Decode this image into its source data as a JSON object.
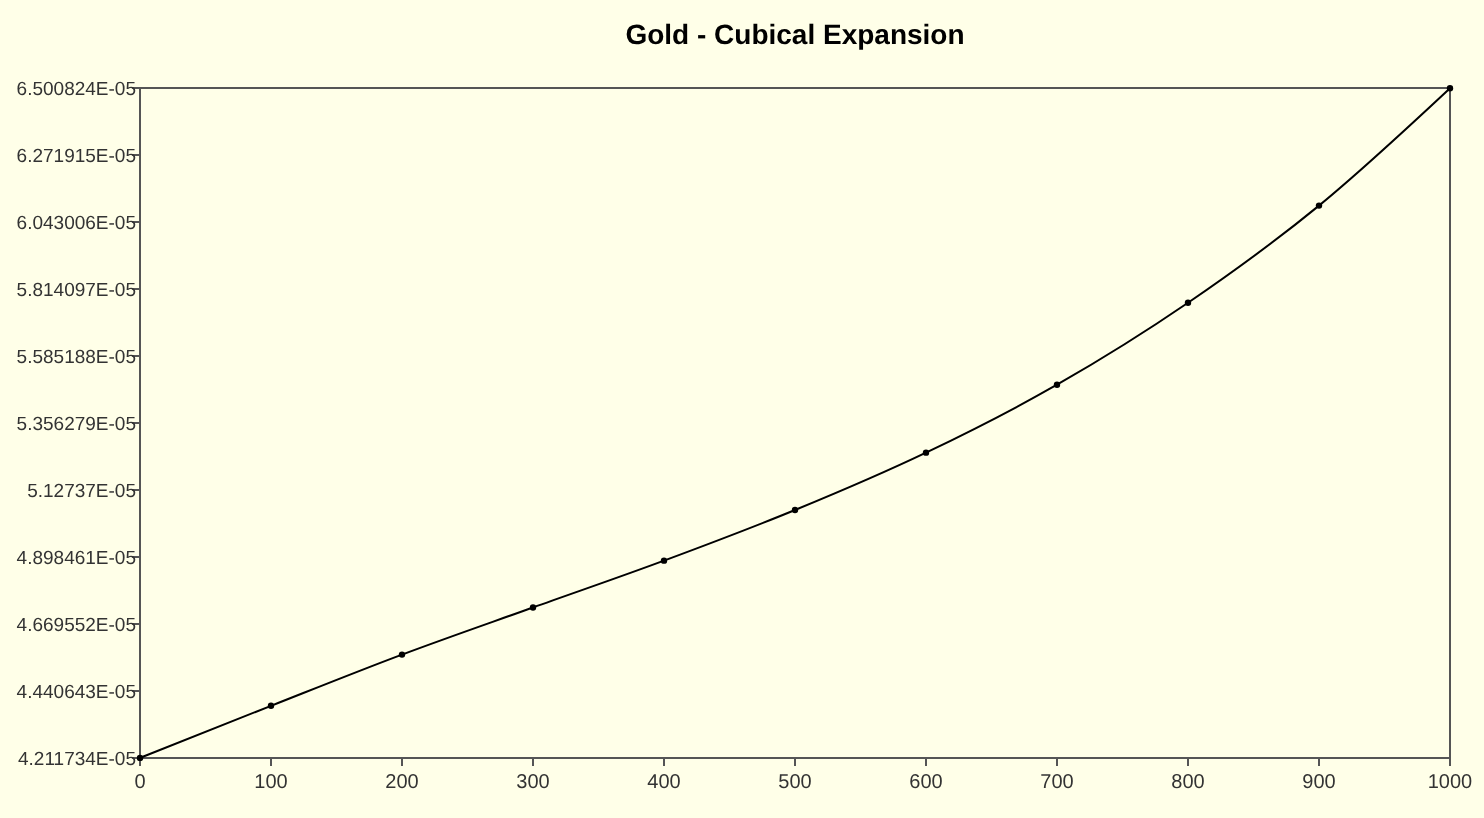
{
  "chart_data": {
    "type": "line",
    "title": "Gold - Cubical Expansion",
    "x": [
      0,
      100,
      200,
      300,
      400,
      500,
      600,
      700,
      800,
      900,
      1000
    ],
    "series": [
      {
        "color": "#000000",
        "values": [
          4.212e-05,
          4.39e-05,
          4.565e-05,
          4.726e-05,
          4.886e-05,
          5.059e-05,
          5.255e-05,
          5.487e-05,
          5.767e-05,
          6.099e-05,
          6.5e-05
        ]
      }
    ],
    "xlim": [
      0,
      1000
    ],
    "xticks": [
      0,
      100,
      200,
      300,
      400,
      500,
      600,
      700,
      800,
      900,
      1000
    ],
    "ylim": [
      4.211734e-05,
      6.500824e-05
    ],
    "yticks": [
      {
        "value": 4.211734e-05,
        "label": "4.211734E-05"
      },
      {
        "value": 4.440643e-05,
        "label": "4.440643E-05"
      },
      {
        "value": 4.669552e-05,
        "label": "4.669552E-05"
      },
      {
        "value": 4.898461e-05,
        "label": "4.898461E-05"
      },
      {
        "value": 5.12737e-05,
        "label": "5.12737E-05"
      },
      {
        "value": 5.356279e-05,
        "label": "5.356279E-05"
      },
      {
        "value": 5.585188e-05,
        "label": "5.585188E-05"
      },
      {
        "value": 5.814097e-05,
        "label": "5.814097E-05"
      },
      {
        "value": 6.043006e-05,
        "label": "6.043006E-05"
      },
      {
        "value": 6.271915e-05,
        "label": "6.271915E-05"
      },
      {
        "value": 6.500824e-05,
        "label": "6.500824E-05"
      }
    ],
    "marker": "circle",
    "grid": false
  }
}
